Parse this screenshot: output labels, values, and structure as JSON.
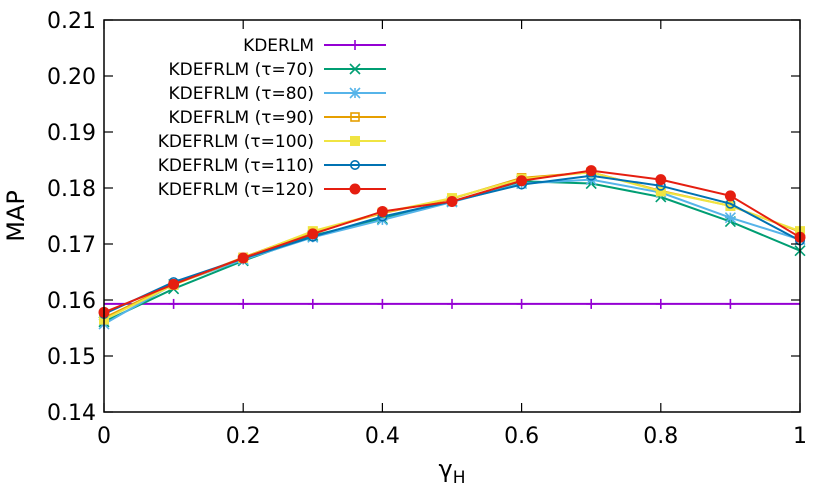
{
  "chart_data": {
    "type": "line",
    "title": "",
    "xlabel": "γ",
    "xlabel_subscript": "H",
    "ylabel": "MAP",
    "xlim": [
      0,
      1
    ],
    "ylim": [
      0.14,
      0.21
    ],
    "grid": false,
    "legend_position": "top-left",
    "x": [
      0,
      0.1,
      0.2,
      0.3,
      0.4,
      0.5,
      0.6,
      0.7,
      0.8,
      0.9,
      1
    ],
    "x_ticks": [
      0,
      0.2,
      0.4,
      0.6,
      0.8,
      1
    ],
    "x_tick_labels": [
      "0",
      "0.2",
      "0.4",
      "0.6",
      "0.8",
      "1"
    ],
    "y_ticks": [
      0.14,
      0.15,
      0.16,
      0.17,
      0.18,
      0.19,
      0.2,
      0.21
    ],
    "y_tick_labels": [
      "0.14",
      "0.15",
      "0.16",
      "0.17",
      "0.18",
      "0.19",
      "0.20",
      "0.21"
    ],
    "series": [
      {
        "name": "KDERLM",
        "color": "#9400d3",
        "marker": "plus",
        "values": [
          0.1593,
          0.1593,
          0.1593,
          0.1593,
          0.1593,
          0.1593,
          0.1593,
          0.1593,
          0.1593,
          0.1593,
          0.1593
        ]
      },
      {
        "name": "KDEFRLM (τ=70)",
        "color": "#009e73",
        "marker": "cross",
        "values": [
          0.1561,
          0.162,
          0.167,
          0.1715,
          0.1745,
          0.1776,
          0.1812,
          0.1808,
          0.1784,
          0.174,
          0.1688
        ]
      },
      {
        "name": "KDEFRLM (τ=80)",
        "color": "#56b4e9",
        "marker": "asterisk",
        "values": [
          0.1557,
          0.1628,
          0.1672,
          0.1712,
          0.1743,
          0.1775,
          0.1808,
          0.1815,
          0.1792,
          0.1747,
          0.1708
        ]
      },
      {
        "name": "KDEFRLM (τ=90)",
        "color": "#e69f00",
        "marker": "square-open",
        "values": [
          0.1568,
          0.1628,
          0.1676,
          0.1722,
          0.1755,
          0.1781,
          0.1818,
          0.1828,
          0.1795,
          0.1768,
          0.1722
        ]
      },
      {
        "name": "KDEFRLM (τ=100)",
        "color": "#f0e442",
        "marker": "square",
        "values": [
          0.1565,
          0.1627,
          0.1675,
          0.1723,
          0.1756,
          0.1782,
          0.1816,
          0.1828,
          0.1794,
          0.1768,
          0.1723
        ]
      },
      {
        "name": "KDEFRLM (τ=110)",
        "color": "#0072b2",
        "marker": "circle-open",
        "values": [
          0.1575,
          0.1632,
          0.1674,
          0.1713,
          0.1749,
          0.1776,
          0.1806,
          0.1822,
          0.1804,
          0.1772,
          0.1706
        ]
      },
      {
        "name": "KDEFRLM (τ=120)",
        "color": "#e51e10",
        "marker": "circle",
        "values": [
          0.1578,
          0.1628,
          0.1675,
          0.1718,
          0.1758,
          0.1776,
          0.1813,
          0.1831,
          0.1815,
          0.1786,
          0.1712
        ]
      }
    ]
  }
}
